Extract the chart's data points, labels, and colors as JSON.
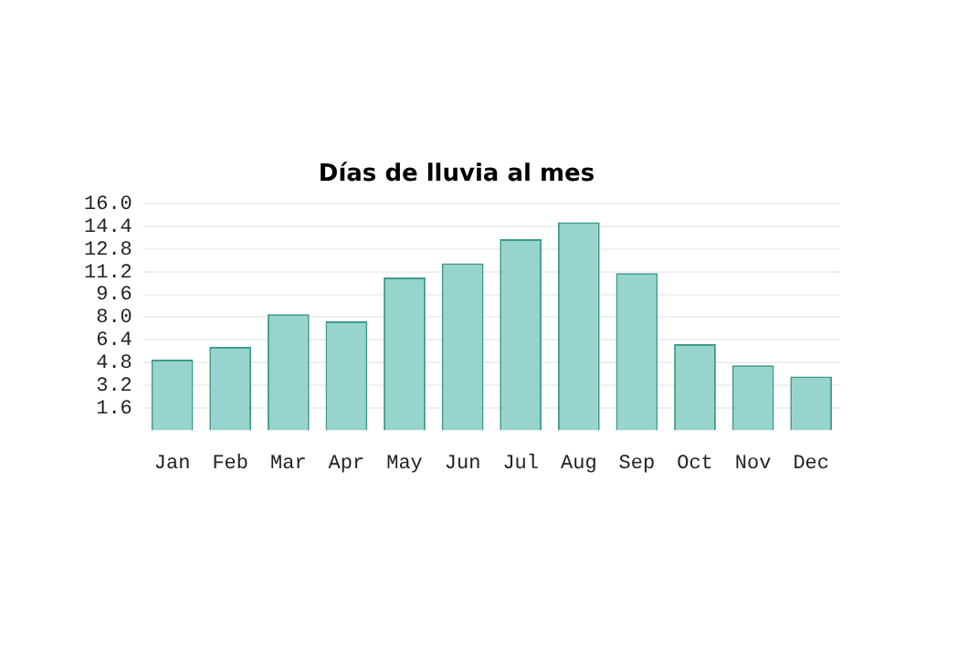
{
  "chart_data": {
    "type": "bar",
    "title": "Días de lluvia al mes",
    "categories": [
      "Jan",
      "Feb",
      "Mar",
      "Apr",
      "May",
      "Jun",
      "Jul",
      "Aug",
      "Sep",
      "Oct",
      "Nov",
      "Dec"
    ],
    "values": [
      5.0,
      5.9,
      8.2,
      7.7,
      10.8,
      11.8,
      13.5,
      14.7,
      11.1,
      6.1,
      4.6,
      3.8
    ],
    "color": "#96d4cc",
    "ylim": [
      0,
      16
    ],
    "yticks": [
      {
        "value": 1.6,
        "label": "1.6"
      },
      {
        "value": 3.2,
        "label": "3.2"
      },
      {
        "value": 4.8,
        "label": "4.8"
      },
      {
        "value": 6.4,
        "label": "6.4"
      },
      {
        "value": 8,
        "label": "8.0"
      },
      {
        "value": 9.6,
        "label": "9.6"
      },
      {
        "value": 11.2,
        "label": "11.2"
      },
      {
        "value": 12.8,
        "label": "12.8"
      },
      {
        "value": 14.4,
        "label": "14.4"
      },
      {
        "value": 16,
        "label": "16.0"
      }
    ],
    "grid": "y"
  }
}
